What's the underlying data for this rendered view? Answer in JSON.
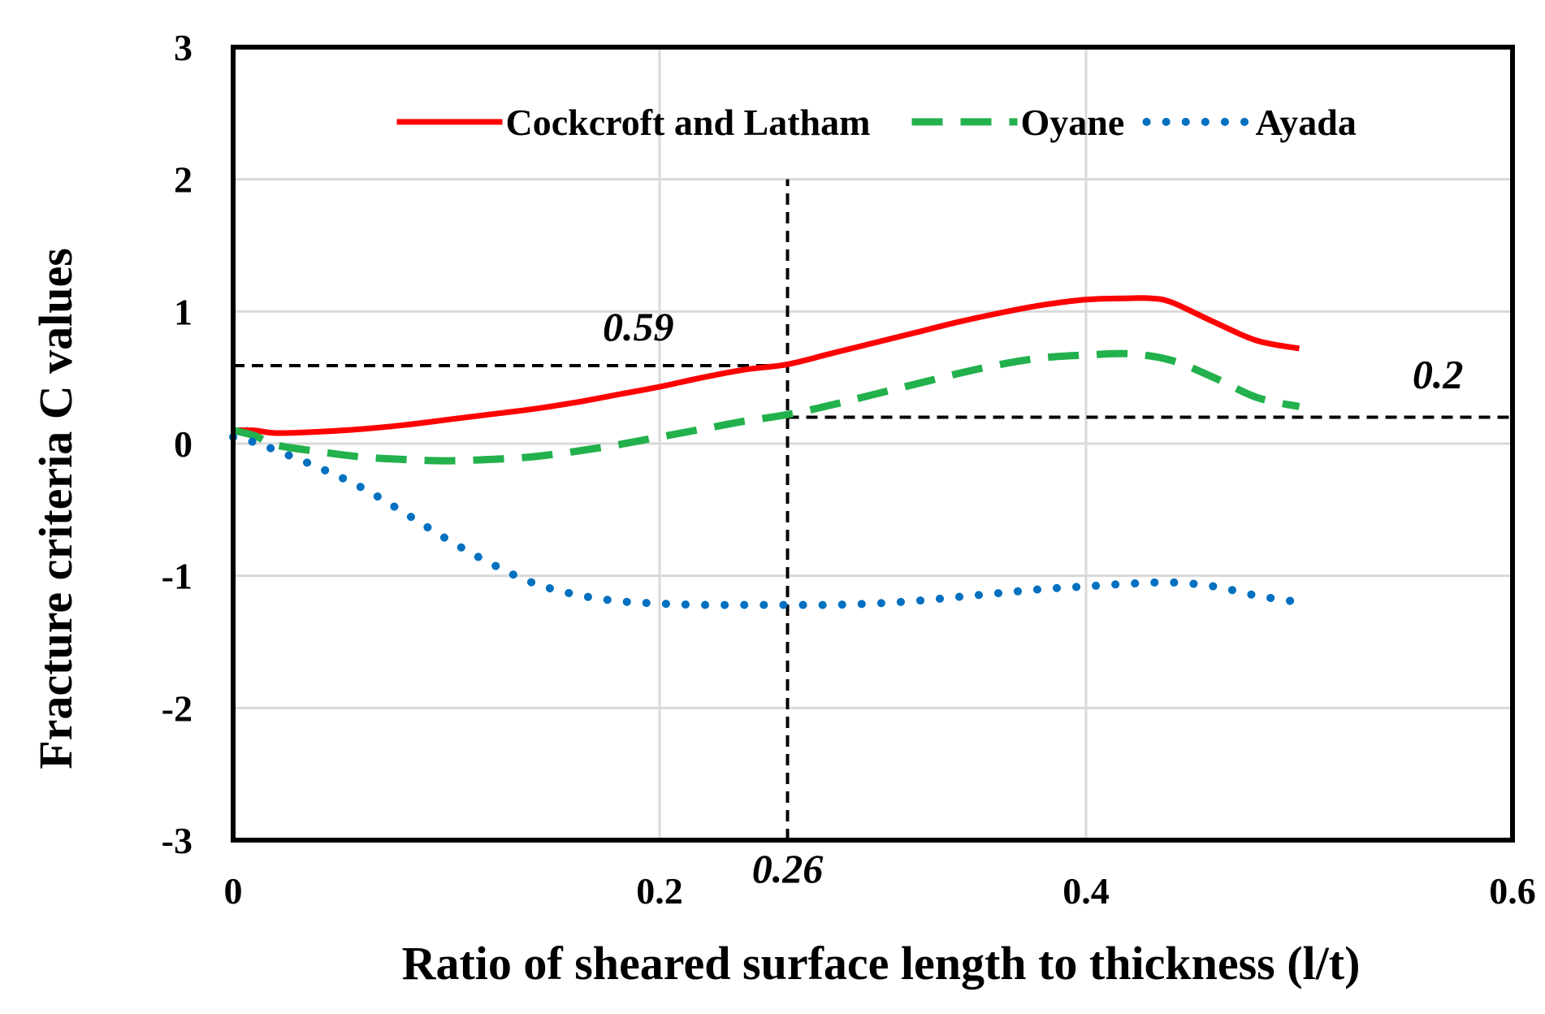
{
  "chart_data": {
    "type": "line",
    "title": "",
    "xlabel": "Ratio of sheared surface length to thickness (l/t)",
    "ylabel": "Fracture criteria C values",
    "xlim": [
      0,
      0.6
    ],
    "ylim": [
      -3,
      3
    ],
    "x_ticks": [
      0,
      0.2,
      0.4,
      0.6
    ],
    "x_tick_labels": [
      "0",
      "0.2",
      "0.4",
      "0.6"
    ],
    "y_ticks": [
      -3,
      -2,
      -1,
      0,
      1,
      2,
      3
    ],
    "y_tick_labels": [
      "-3",
      "-2",
      "-1",
      "0",
      "1",
      "2",
      "3"
    ],
    "grid": true,
    "legend_position": "top",
    "series": [
      {
        "name": "Cockcroft and Latham",
        "color": "#ff0000",
        "style": "solid",
        "x": [
          0,
          0.01,
          0.02,
          0.04,
          0.06,
          0.08,
          0.1,
          0.12,
          0.14,
          0.16,
          0.18,
          0.2,
          0.22,
          0.24,
          0.26,
          0.28,
          0.3,
          0.32,
          0.34,
          0.36,
          0.38,
          0.4,
          0.42,
          0.43,
          0.44,
          0.46,
          0.48,
          0.5
        ],
        "y": [
          0.1,
          0.1,
          0.08,
          0.09,
          0.11,
          0.14,
          0.18,
          0.22,
          0.26,
          0.31,
          0.37,
          0.43,
          0.5,
          0.56,
          0.6,
          0.68,
          0.76,
          0.84,
          0.92,
          0.99,
          1.05,
          1.09,
          1.1,
          1.1,
          1.07,
          0.92,
          0.78,
          0.72
        ]
      },
      {
        "name": "Oyane",
        "color": "#22b14c",
        "style": "dashed",
        "x": [
          0,
          0.01,
          0.02,
          0.04,
          0.06,
          0.08,
          0.1,
          0.12,
          0.14,
          0.16,
          0.18,
          0.2,
          0.22,
          0.24,
          0.26,
          0.28,
          0.3,
          0.32,
          0.34,
          0.36,
          0.38,
          0.4,
          0.42,
          0.44,
          0.46,
          0.48,
          0.5
        ],
        "y": [
          0.1,
          0.06,
          -0.01,
          -0.06,
          -0.1,
          -0.12,
          -0.13,
          -0.12,
          -0.1,
          -0.06,
          -0.01,
          0.05,
          0.11,
          0.17,
          0.22,
          0.29,
          0.37,
          0.45,
          0.53,
          0.6,
          0.65,
          0.67,
          0.68,
          0.63,
          0.5,
          0.35,
          0.28
        ]
      },
      {
        "name": "Ayada",
        "color": "#0070c0",
        "style": "dotted",
        "x": [
          0,
          0.01,
          0.02,
          0.04,
          0.06,
          0.08,
          0.1,
          0.12,
          0.14,
          0.16,
          0.18,
          0.2,
          0.22,
          0.24,
          0.26,
          0.28,
          0.3,
          0.32,
          0.34,
          0.36,
          0.38,
          0.4,
          0.42,
          0.44,
          0.46,
          0.48,
          0.5
        ],
        "y": [
          0.05,
          0.01,
          -0.05,
          -0.18,
          -0.33,
          -0.52,
          -0.72,
          -0.9,
          -1.05,
          -1.14,
          -1.19,
          -1.21,
          -1.22,
          -1.22,
          -1.22,
          -1.22,
          -1.21,
          -1.19,
          -1.16,
          -1.13,
          -1.1,
          -1.08,
          -1.06,
          -1.05,
          -1.08,
          -1.15,
          -1.2
        ]
      }
    ],
    "reference_lines": [
      {
        "orientation": "vertical",
        "x": 0.26,
        "y_from": -3,
        "y_to": 2
      },
      {
        "orientation": "horizontal",
        "y": 0.59,
        "x_from": 0,
        "x_to": 0.26
      },
      {
        "orientation": "horizontal",
        "y": 0.2,
        "x_from": 0.26,
        "x_to": 0.6
      }
    ],
    "annotations": [
      {
        "text": "0.59",
        "x": 0.19,
        "y": 0.78
      },
      {
        "text": "0.2",
        "x": 0.565,
        "y": 0.42
      },
      {
        "text": "0.26",
        "x": 0.26,
        "y": -3.32
      }
    ]
  }
}
